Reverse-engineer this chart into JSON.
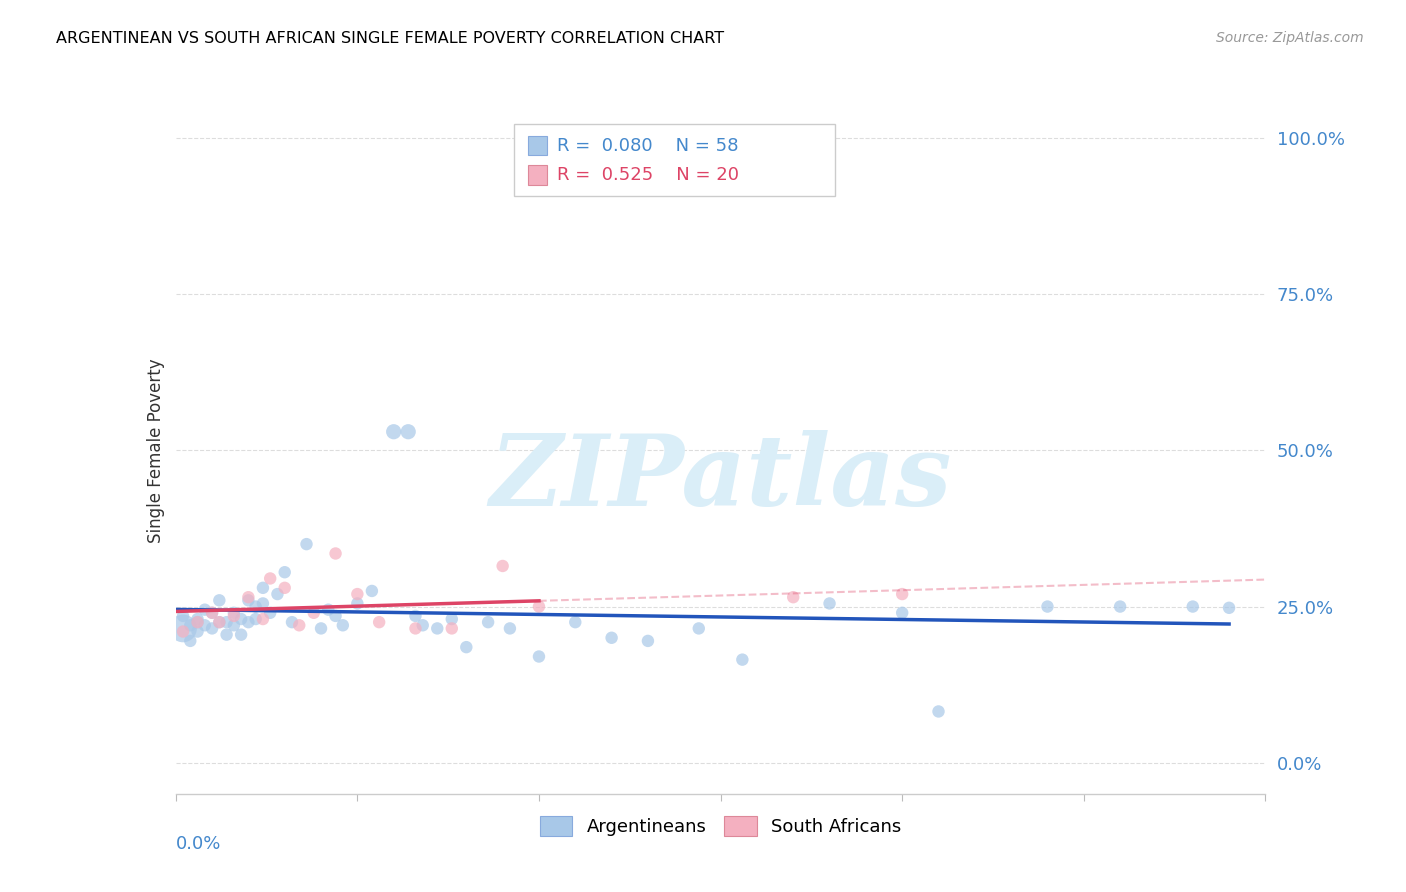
{
  "title": "ARGENTINEAN VS SOUTH AFRICAN SINGLE FEMALE POVERTY CORRELATION CHART",
  "source": "Source: ZipAtlas.com",
  "ylabel": "Single Female Poverty",
  "xlim": [
    0.0,
    0.15
  ],
  "ylim": [
    -0.05,
    1.05
  ],
  "ytick_values": [
    0.0,
    0.25,
    0.5,
    0.75,
    1.0
  ],
  "ytick_labels": [
    "0.0%",
    "25.0%",
    "50.0%",
    "75.0%",
    "100.0%"
  ],
  "xtick_left_label": "0.0%",
  "argentina_R": "0.080",
  "argentina_N": "58",
  "sa_R": "0.525",
  "sa_N": "20",
  "argentina_color": "#a8c8e8",
  "sa_color": "#f4b0c0",
  "argentina_line_color": "#2255bb",
  "sa_line_color": "#dd4466",
  "watermark_text": "ZIPatlas",
  "watermark_color": "#daeef8",
  "grid_color": "#dddddd",
  "arg_x": [
    0.001,
    0.001,
    0.002,
    0.002,
    0.003,
    0.003,
    0.003,
    0.004,
    0.004,
    0.005,
    0.005,
    0.006,
    0.006,
    0.007,
    0.007,
    0.008,
    0.008,
    0.009,
    0.009,
    0.01,
    0.01,
    0.011,
    0.011,
    0.012,
    0.012,
    0.013,
    0.014,
    0.015,
    0.016,
    0.018,
    0.02,
    0.021,
    0.022,
    0.023,
    0.025,
    0.027,
    0.03,
    0.032,
    0.033,
    0.034,
    0.036,
    0.038,
    0.04,
    0.043,
    0.046,
    0.05,
    0.055,
    0.06,
    0.065,
    0.072,
    0.078,
    0.09,
    0.1,
    0.105,
    0.12,
    0.13,
    0.14,
    0.145
  ],
  "arg_y": [
    0.215,
    0.235,
    0.22,
    0.195,
    0.23,
    0.21,
    0.225,
    0.245,
    0.22,
    0.215,
    0.24,
    0.225,
    0.26,
    0.205,
    0.225,
    0.24,
    0.22,
    0.23,
    0.205,
    0.225,
    0.26,
    0.25,
    0.23,
    0.28,
    0.255,
    0.24,
    0.27,
    0.305,
    0.225,
    0.35,
    0.215,
    0.245,
    0.235,
    0.22,
    0.255,
    0.275,
    0.53,
    0.53,
    0.235,
    0.22,
    0.215,
    0.23,
    0.185,
    0.225,
    0.215,
    0.17,
    0.225,
    0.2,
    0.195,
    0.215,
    0.165,
    0.255,
    0.24,
    0.082,
    0.25,
    0.25,
    0.25,
    0.248
  ],
  "arg_sizes": [
    400,
    80,
    80,
    80,
    80,
    80,
    80,
    80,
    80,
    80,
    80,
    80,
    80,
    80,
    80,
    80,
    80,
    80,
    80,
    80,
    80,
    80,
    80,
    80,
    80,
    80,
    80,
    80,
    80,
    80,
    80,
    80,
    80,
    80,
    80,
    80,
    120,
    120,
    80,
    80,
    80,
    80,
    80,
    80,
    80,
    80,
    80,
    80,
    80,
    80,
    80,
    80,
    80,
    80,
    80,
    80,
    80,
    80
  ],
  "sa_x": [
    0.001,
    0.003,
    0.005,
    0.006,
    0.008,
    0.01,
    0.012,
    0.013,
    0.015,
    0.017,
    0.019,
    0.022,
    0.025,
    0.028,
    0.033,
    0.038,
    0.045,
    0.05,
    0.085,
    0.1
  ],
  "sa_y": [
    0.21,
    0.225,
    0.24,
    0.225,
    0.235,
    0.265,
    0.23,
    0.295,
    0.28,
    0.22,
    0.24,
    0.335,
    0.27,
    0.225,
    0.215,
    0.215,
    0.315,
    0.25,
    0.265,
    0.27
  ],
  "sa_sizes": [
    80,
    80,
    80,
    80,
    80,
    80,
    80,
    80,
    80,
    80,
    80,
    80,
    80,
    80,
    80,
    80,
    80,
    80,
    80,
    80
  ]
}
